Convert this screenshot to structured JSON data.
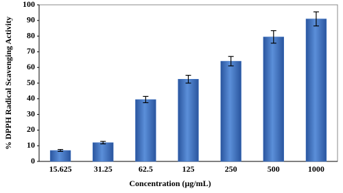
{
  "chart_data": {
    "type": "bar",
    "x_label": "Concentration (µg/mL)",
    "y_label": "% DPPH Radical Scavenging Activity",
    "categories": [
      "15.625",
      "31.25",
      "62.5",
      "125",
      "250",
      "500",
      "1000"
    ],
    "values": [
      7,
      12,
      39.5,
      52.5,
      64,
      79.5,
      91
    ],
    "errors": [
      0.6,
      0.8,
      2,
      2.5,
      3,
      4,
      4.5
    ],
    "color": "#3a6fc0",
    "ylim": [
      0,
      100
    ],
    "yticks": [
      0,
      10,
      20,
      30,
      40,
      50,
      60,
      70,
      80,
      90,
      100
    ],
    "grid": false
  }
}
